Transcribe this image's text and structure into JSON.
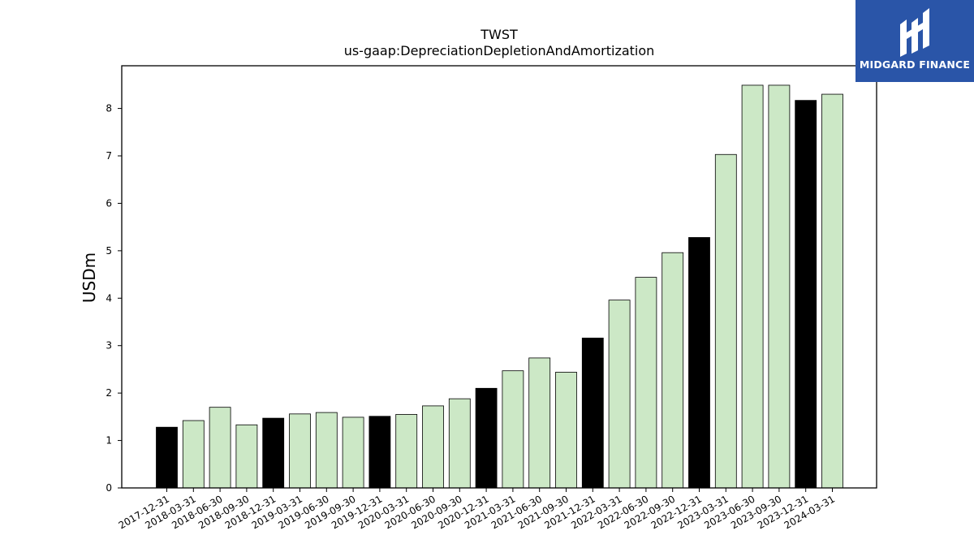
{
  "chart_data": {
    "type": "bar",
    "title": "TWST",
    "subtitle": "us-gaap:DepreciationDepletionAndAmortization",
    "xlabel": "",
    "ylabel": "USDm",
    "ylim": [
      0,
      8.9
    ],
    "yticks": [
      0,
      1,
      2,
      3,
      4,
      5,
      6,
      7,
      8
    ],
    "grid": false,
    "categories": [
      "2017-12-31",
      "2018-03-31",
      "2018-06-30",
      "2018-09-30",
      "2018-12-31",
      "2019-03-31",
      "2019-06-30",
      "2019-09-30",
      "2019-12-31",
      "2020-03-31",
      "2020-06-30",
      "2020-09-30",
      "2020-12-31",
      "2021-03-31",
      "2021-06-30",
      "2021-09-30",
      "2021-12-31",
      "2022-03-31",
      "2022-06-30",
      "2022-09-30",
      "2022-12-31",
      "2023-03-31",
      "2023-06-30",
      "2023-09-30",
      "2023-12-31",
      "2024-03-31"
    ],
    "values": [
      1.28,
      1.42,
      1.7,
      1.33,
      1.47,
      1.56,
      1.59,
      1.49,
      1.51,
      1.55,
      1.73,
      1.88,
      2.1,
      2.47,
      2.74,
      2.44,
      3.16,
      3.96,
      4.44,
      4.96,
      5.28,
      7.03,
      8.49,
      8.49,
      8.17,
      8.3
    ],
    "colors": {
      "annual": "#000000",
      "quarterly": "#cce8c6",
      "edge": "#000000"
    }
  },
  "logo": {
    "text": "MIDGARD FINANCE",
    "background": "#2a55a8"
  }
}
